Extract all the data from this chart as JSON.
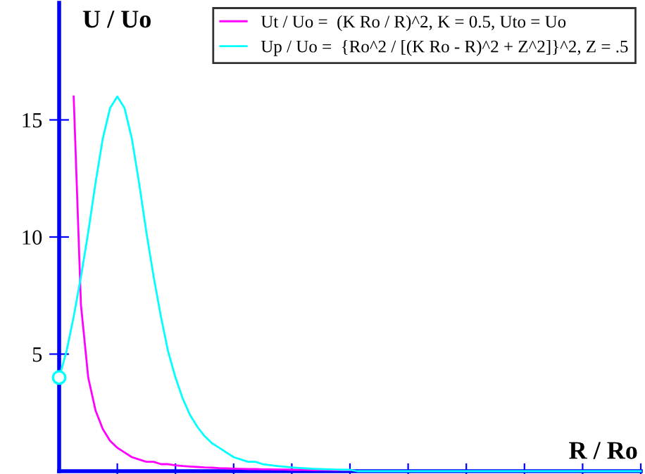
{
  "chart_data": {
    "type": "line",
    "xlabel": "R / Ro",
    "ylabel": "U / Uo",
    "categories": [
      null,
      null,
      null,
      null,
      null,
      null,
      null,
      null,
      null,
      null,
      null,
      null,
      null,
      null,
      null,
      null,
      null,
      null,
      null,
      null,
      null,
      null,
      null,
      null,
      null,
      null,
      null,
      null,
      null,
      null,
      null,
      null,
      null,
      null,
      null,
      null,
      null,
      null,
      null,
      null,
      null,
      null,
      null,
      null,
      null,
      null,
      null,
      null,
      null,
      null,
      null,
      null,
      null,
      null,
      null,
      null,
      null,
      null,
      null,
      null,
      null,
      null,
      null,
      null,
      null,
      null,
      null,
      null,
      null,
      null,
      null,
      null,
      null,
      null,
      null,
      null,
      null,
      null,
      null,
      null,
      null
    ],
    "ylim": [
      0,
      20
    ],
    "yticks": [
      5,
      10,
      15
    ],
    "tick_labels": "y",
    "legend": "top right",
    "series": [
      {
        "name": "Ut / Uo =  (K Ro / R)^2, K = 0.5, Uto = Uo",
        "color": "#ff00ff",
        "values": [
          null,
          null,
          16,
          7.1,
          4,
          2.6,
          1.8,
          1.3,
          1,
          0.8,
          0.6,
          0.5,
          0.4,
          0.4,
          0.3,
          0.3,
          0.25,
          0.22,
          0.2,
          0.18,
          0.16,
          0.15,
          0.13,
          0.12,
          0.11,
          0.1,
          0.09,
          0.09,
          0.08,
          0.08,
          0.07,
          0.07,
          0.06,
          0.06,
          0.06,
          0.05,
          0.05,
          0.05,
          0.04,
          0.04,
          0.04,
          null,
          null,
          null,
          null,
          null,
          null,
          null,
          null,
          null,
          null,
          null,
          null,
          null,
          null,
          null,
          null,
          null,
          null,
          null,
          null,
          null,
          null,
          null,
          null,
          null,
          null,
          null,
          null,
          null,
          null,
          null,
          null,
          null,
          null,
          null,
          null,
          null,
          null,
          null,
          null
        ]
      },
      {
        "name": "Up / Uo =  {Ro^2 / [(K Ro - R)^2 + Z^2]}^2, Z = .5",
        "color": "#00ffff",
        "values": [
          4,
          5.1,
          6.6,
          8.3,
          10.2,
          12.3,
          14.2,
          15.5,
          16,
          15.5,
          14.2,
          12.3,
          10.2,
          8.3,
          6.6,
          5.1,
          4,
          3.1,
          2.4,
          1.9,
          1.5,
          1.2,
          1,
          0.8,
          0.6,
          0.5,
          0.4,
          0.4,
          0.3,
          0.26,
          0.22,
          0.19,
          0.16,
          0.14,
          0.12,
          0.1,
          0.09,
          0.08,
          0.07,
          0.06,
          0.06,
          0,
          0,
          0,
          0,
          0,
          0,
          0,
          0,
          0,
          0,
          0,
          0,
          0,
          0,
          0,
          0,
          0,
          0,
          0,
          0,
          0,
          0,
          0,
          0,
          0,
          0,
          0,
          0,
          0,
          0,
          0,
          0,
          0,
          0,
          0,
          0,
          0,
          0,
          0,
          0
        ]
      }
    ]
  }
}
